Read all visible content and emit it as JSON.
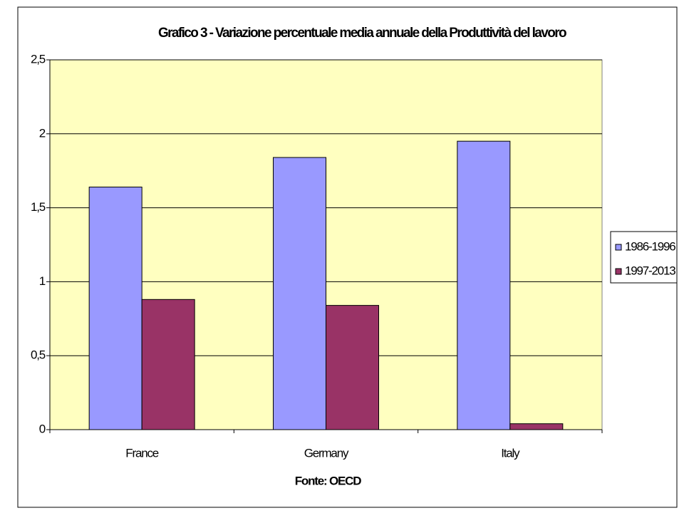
{
  "chart_data": {
    "type": "bar",
    "title": "Grafico 3 - Variazione percentuale media annuale della Produttività del lavoro",
    "x_label": "Fonte: OECD",
    "categories": [
      "France",
      "Germany",
      "Italy"
    ],
    "series": [
      {
        "name": "1986-1996",
        "color": "#9999ff",
        "values": [
          1.64,
          1.84,
          1.95
        ]
      },
      {
        "name": "1997-2013",
        "color": "#993366",
        "values": [
          0.88,
          0.84,
          0.04
        ]
      }
    ],
    "ylim": [
      0,
      2.5
    ],
    "yticks": [
      0,
      {
        "value": 0.5,
        "label": "0,5"
      },
      1,
      {
        "value": 1.5,
        "label": "1,5"
      },
      2,
      {
        "value": 2.5,
        "label": "2,5"
      }
    ],
    "grid": true,
    "legend": "right"
  }
}
